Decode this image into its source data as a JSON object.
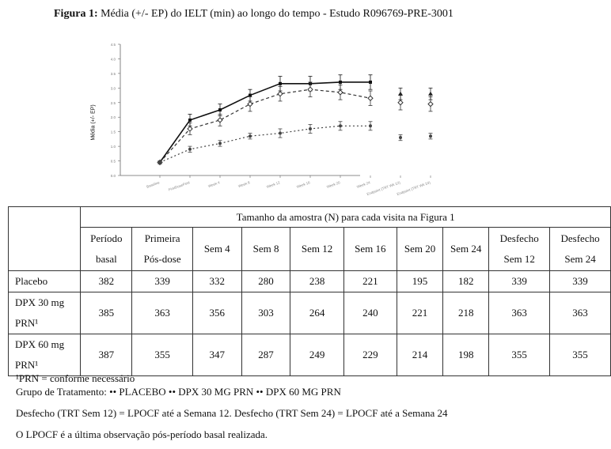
{
  "figure": {
    "title_prefix": "Figura 1:",
    "title_text": " Média (+/- EP) do IELT (min) ao longo do tempo - Estudo R096769-PRE-3001"
  },
  "chart_data": {
    "type": "line",
    "ylabel": "Média (+/- EP)",
    "ylim": [
      0,
      4.5
    ],
    "yticks": [
      0,
      0.5,
      1.0,
      1.5,
      2.0,
      2.5,
      3.0,
      3.5,
      4.0,
      4.5
    ],
    "categories": [
      "Baseline",
      "FirstDosePost",
      "Week 4",
      "Week 8",
      "Week 12",
      "Week 16",
      "Week 20",
      "Week 24",
      "Endpoint (TRT Wk 12)",
      "Endpoint (TRT Wk 24)"
    ],
    "series": [
      {
        "values": [
          0.45,
          1.9,
          2.25,
          2.75,
          3.15,
          3.15,
          3.2,
          3.2,
          null,
          null
        ],
        "err": [
          0.05,
          0.2,
          0.2,
          0.2,
          0.25,
          0.25,
          0.25,
          0.25,
          null,
          null
        ],
        "color": "#111111",
        "dash": "",
        "marker": "square"
      },
      {
        "values": [
          0.45,
          1.6,
          1.9,
          2.45,
          2.8,
          2.95,
          2.85,
          2.65,
          2.5,
          2.45
        ],
        "err": [
          0.05,
          0.2,
          0.2,
          0.25,
          0.25,
          0.25,
          0.25,
          0.25,
          0.25,
          0.25
        ],
        "color": "#333333",
        "dash": "4 3",
        "marker": "diamond"
      },
      {
        "values": [
          0.45,
          0.9,
          1.1,
          1.35,
          1.45,
          1.6,
          1.7,
          1.7,
          1.3,
          1.35
        ],
        "err": [
          0.05,
          0.1,
          0.1,
          0.1,
          0.15,
          0.15,
          0.15,
          0.15,
          0.1,
          0.1
        ],
        "color": "#444444",
        "dash": "2 3",
        "marker": "circle"
      },
      {
        "values": [
          null,
          null,
          null,
          null,
          null,
          null,
          null,
          null,
          2.8,
          2.8
        ],
        "err": [
          null,
          null,
          null,
          null,
          null,
          null,
          null,
          null,
          0.2,
          0.2
        ],
        "color": "#222222",
        "dash": "",
        "marker": "triangle"
      }
    ]
  },
  "table": {
    "title": "Tamanho da amostra (N) para cada visita na Figura 1",
    "headers": [
      [
        "Período",
        "basal"
      ],
      [
        "Primeira",
        "Pós-dose"
      ],
      [
        "Sem 4"
      ],
      [
        "Sem 8"
      ],
      [
        "Sem 12"
      ],
      [
        "Sem 16"
      ],
      [
        "Sem 20"
      ],
      [
        "Sem 24"
      ],
      [
        "Desfecho",
        "Sem 12"
      ],
      [
        "Desfecho",
        "Sem 24"
      ]
    ],
    "rows": [
      {
        "label": [
          "Placebo"
        ],
        "values": [
          "382",
          "339",
          "332",
          "280",
          "238",
          "221",
          "195",
          "182",
          "339",
          "339"
        ]
      },
      {
        "label": [
          "DPX 30 mg",
          "PRN¹"
        ],
        "values": [
          "385",
          "363",
          "356",
          "303",
          "264",
          "240",
          "221",
          "218",
          "363",
          "363"
        ]
      },
      {
        "label": [
          "DPX 60 mg",
          "PRN¹"
        ],
        "values": [
          "387",
          "355",
          "347",
          "287",
          "249",
          "229",
          "214",
          "198",
          "355",
          "355"
        ]
      }
    ]
  },
  "notes": {
    "line1": "¹PRN = conforme necessário",
    "line2": "Grupo de Tratamento: •• PLACEBO •• DPX 30 MG PRN •• DPX 60 MG PRN",
    "line3": "Desfecho (TRT Sem 12) = LPOCF até a Semana 12. Desfecho (TRT Sem 24) = LPOCF até a Semana 24",
    "line4": "O LPOCF é a última observação pós-período basal realizada."
  }
}
